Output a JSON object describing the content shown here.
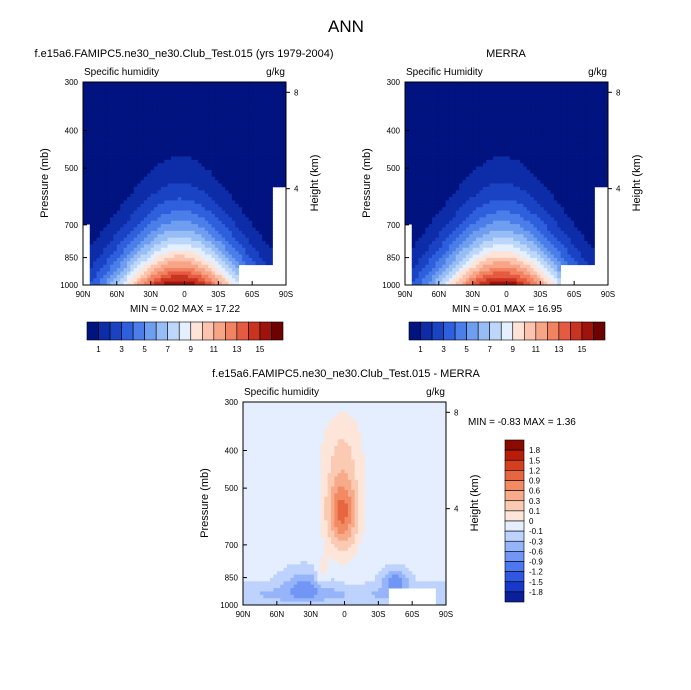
{
  "page_title": "ANN",
  "colorbar_top": {
    "colors": [
      "#00137f",
      "#0d2ca8",
      "#1a43c4",
      "#2e5fdc",
      "#4b7ee8",
      "#6f9ef0",
      "#97bdf6",
      "#bcd7fa",
      "#e4efff",
      "#ffe3d6",
      "#fcc4ae",
      "#f8a486",
      "#f18262",
      "#e45b41",
      "#c93420",
      "#a0120c",
      "#6e0200"
    ],
    "labels": [
      "1",
      "3",
      "5",
      "7",
      "9",
      "11",
      "13",
      "15"
    ]
  },
  "colorbar_diff": {
    "colors": [
      "#0a1f99",
      "#1738c8",
      "#2f57e0",
      "#4d77ee",
      "#7196f5",
      "#96b4fa",
      "#bdd2fc",
      "#e5eefe",
      "#fde6d9",
      "#fbcab2",
      "#f7ab8a",
      "#f28a63",
      "#e66640",
      "#d4401f",
      "#b81d0a",
      "#8a0a00"
    ],
    "labels": [
      "1.8",
      "1.5",
      "1.2",
      "0.9",
      "0.6",
      "0.3",
      "0.1",
      "0",
      "-0.1",
      "-0.3",
      "-0.6",
      "-0.9",
      "-1.2",
      "-1.5",
      "-1.8"
    ]
  },
  "chart_data": [
    {
      "type": "heatmap",
      "title": "f.e15a6.FAMIPC5.ne30_ne30.Club_Test.015 (yrs 1979-2004)",
      "left_label": "Specific humidity",
      "right_label": "g/kg",
      "ylabel": "Pressure (mb)",
      "y2label": "Height (km)",
      "xticks": [
        "90N",
        "60N",
        "30N",
        "0",
        "30S",
        "60S",
        "90S"
      ],
      "yticks": [
        "300",
        "400",
        "500",
        "700",
        "850",
        "1000"
      ],
      "y2ticks": [
        "8",
        "4"
      ],
      "stats": "MIN =  0.02  MAX =  17.22",
      "min": 0.02,
      "max": 17.22,
      "xlim": [
        90,
        -90
      ],
      "ylim": [
        1000,
        300
      ],
      "data_range": [
        0,
        18
      ],
      "color_scale": "colorbar_top"
    },
    {
      "type": "heatmap",
      "title": "MERRA",
      "left_label": "Specific Humidity",
      "right_label": "g/kg",
      "ylabel": "Pressure (mb)",
      "y2label": "Height (km)",
      "xticks": [
        "90N",
        "60N",
        "30N",
        "0",
        "30S",
        "60S",
        "90S"
      ],
      "yticks": [
        "300",
        "400",
        "500",
        "700",
        "850",
        "1000"
      ],
      "y2ticks": [
        "8",
        "4"
      ],
      "stats": "MIN =  0.01  MAX =  16.95",
      "min": 0.01,
      "max": 16.95,
      "xlim": [
        90,
        -90
      ],
      "ylim": [
        1000,
        300
      ],
      "data_range": [
        0,
        18
      ],
      "color_scale": "colorbar_top"
    },
    {
      "type": "heatmap",
      "title": "f.e15a6.FAMIPC5.ne30_ne30.Club_Test.015 - MERRA",
      "left_label": "Specific humidity",
      "right_label": "g/kg",
      "ylabel": "Pressure (mb)",
      "y2label": "Height (km)",
      "xticks": [
        "90N",
        "60N",
        "30N",
        "0",
        "30S",
        "60S",
        "90S"
      ],
      "yticks": [
        "300",
        "400",
        "500",
        "700",
        "850",
        "1000"
      ],
      "y2ticks": [
        "8",
        "4"
      ],
      "stats": "MIN = -0.83  MAX =  1.36",
      "min": -0.83,
      "max": 1.36,
      "xlim": [
        90,
        -90
      ],
      "ylim": [
        1000,
        300
      ],
      "data_range": [
        -1.8,
        1.8
      ],
      "color_scale": "colorbar_diff"
    }
  ]
}
